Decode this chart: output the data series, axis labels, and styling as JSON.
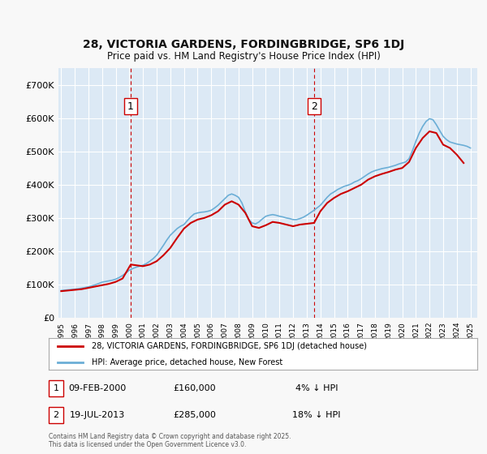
{
  "title_line1": "28, VICTORIA GARDENS, FORDINGBRIDGE, SP6 1DJ",
  "title_line2": "Price paid vs. HM Land Registry's House Price Index (HPI)",
  "background_color": "#dce9f5",
  "plot_bg_color": "#dce9f5",
  "ylabel_color": "#222222",
  "grid_color": "#ffffff",
  "ylim": [
    0,
    750000
  ],
  "yticks": [
    0,
    100000,
    200000,
    300000,
    400000,
    500000,
    600000,
    700000
  ],
  "ytick_labels": [
    "£0",
    "£100K",
    "£200K",
    "£300K",
    "£400K",
    "£500K",
    "£600K",
    "£700K"
  ],
  "hpi_color": "#6baed6",
  "price_color": "#cc0000",
  "vline_color": "#cc0000",
  "marker1_x": 2000.1,
  "marker2_x": 2013.54,
  "marker1_label": "1",
  "marker2_label": "2",
  "legend_line1": "28, VICTORIA GARDENS, FORDINGBRIDGE, SP6 1DJ (detached house)",
  "legend_line2": "HPI: Average price, detached house, New Forest",
  "annotation1": "1     09-FEB-2000          £160,000          4% ↓ HPI",
  "annotation2": "2     19-JUL-2013            £285,000         18% ↓ HPI",
  "footer": "Contains HM Land Registry data © Crown copyright and database right 2025.\nThis data is licensed under the Open Government Licence v3.0.",
  "hpi_data_x": [
    1995,
    1995.25,
    1995.5,
    1995.75,
    1996,
    1996.25,
    1996.5,
    1996.75,
    1997,
    1997.25,
    1997.5,
    1997.75,
    1998,
    1998.25,
    1998.5,
    1998.75,
    1999,
    1999.25,
    1999.5,
    1999.75,
    2000,
    2000.25,
    2000.5,
    2000.75,
    2001,
    2001.25,
    2001.5,
    2001.75,
    2002,
    2002.25,
    2002.5,
    2002.75,
    2003,
    2003.25,
    2003.5,
    2003.75,
    2004,
    2004.25,
    2004.5,
    2004.75,
    2005,
    2005.25,
    2005.5,
    2005.75,
    2006,
    2006.25,
    2006.5,
    2006.75,
    2007,
    2007.25,
    2007.5,
    2007.75,
    2008,
    2008.25,
    2008.5,
    2008.75,
    2009,
    2009.25,
    2009.5,
    2009.75,
    2010,
    2010.25,
    2010.5,
    2010.75,
    2011,
    2011.25,
    2011.5,
    2011.75,
    2012,
    2012.25,
    2012.5,
    2012.75,
    2013,
    2013.25,
    2013.5,
    2013.75,
    2014,
    2014.25,
    2014.5,
    2014.75,
    2015,
    2015.25,
    2015.5,
    2015.75,
    2016,
    2016.25,
    2016.5,
    2016.75,
    2017,
    2017.25,
    2017.5,
    2017.75,
    2018,
    2018.25,
    2018.5,
    2018.75,
    2019,
    2019.25,
    2019.5,
    2019.75,
    2020,
    2020.25,
    2020.5,
    2020.75,
    2021,
    2021.25,
    2021.5,
    2021.75,
    2022,
    2022.25,
    2022.5,
    2022.75,
    2023,
    2023.25,
    2023.5,
    2023.75,
    2024,
    2024.25,
    2024.5,
    2024.75,
    2025
  ],
  "hpi_data_y": [
    82000,
    83000,
    84000,
    85000,
    86000,
    87500,
    89000,
    91000,
    93000,
    96000,
    99000,
    103000,
    107000,
    109000,
    111000,
    113000,
    116000,
    121000,
    127000,
    135000,
    143000,
    148000,
    152000,
    155000,
    158000,
    163000,
    170000,
    178000,
    188000,
    203000,
    218000,
    234000,
    248000,
    258000,
    268000,
    275000,
    280000,
    292000,
    303000,
    312000,
    315000,
    317000,
    318000,
    320000,
    323000,
    330000,
    338000,
    348000,
    358000,
    368000,
    372000,
    368000,
    362000,
    345000,
    318000,
    295000,
    285000,
    282000,
    288000,
    297000,
    305000,
    308000,
    310000,
    308000,
    305000,
    303000,
    300000,
    298000,
    295000,
    295000,
    298000,
    302000,
    308000,
    315000,
    322000,
    330000,
    338000,
    350000,
    362000,
    372000,
    378000,
    385000,
    390000,
    395000,
    398000,
    402000,
    408000,
    412000,
    418000,
    425000,
    432000,
    438000,
    442000,
    445000,
    448000,
    450000,
    452000,
    455000,
    458000,
    462000,
    465000,
    468000,
    478000,
    502000,
    530000,
    555000,
    575000,
    590000,
    598000,
    595000,
    580000,
    562000,
    545000,
    535000,
    528000,
    525000,
    522000,
    520000,
    518000,
    515000,
    510000
  ],
  "price_data_x": [
    1995,
    1995.5,
    1996,
    1996.5,
    1997,
    1997.5,
    1998,
    1998.5,
    1999,
    1999.5,
    2000.1,
    2001,
    2001.5,
    2002,
    2002.5,
    2003,
    2003.5,
    2004,
    2004.5,
    2005,
    2005.5,
    2006,
    2006.5,
    2007,
    2007.5,
    2008,
    2008.5,
    2009,
    2009.5,
    2010,
    2010.5,
    2011,
    2011.5,
    2012,
    2012.5,
    2013.54,
    2014,
    2014.5,
    2015,
    2015.5,
    2016,
    2016.5,
    2017,
    2017.5,
    2018,
    2018.5,
    2019,
    2019.5,
    2020,
    2020.5,
    2021,
    2021.5,
    2022,
    2022.5,
    2023,
    2023.5,
    2024,
    2024.5
  ],
  "price_data_y": [
    80000,
    82000,
    84000,
    86000,
    90000,
    94000,
    98000,
    102000,
    108000,
    118000,
    160000,
    155000,
    160000,
    170000,
    188000,
    210000,
    240000,
    268000,
    285000,
    295000,
    300000,
    308000,
    320000,
    340000,
    350000,
    340000,
    315000,
    275000,
    270000,
    278000,
    288000,
    285000,
    280000,
    275000,
    280000,
    285000,
    320000,
    345000,
    360000,
    372000,
    380000,
    390000,
    400000,
    415000,
    425000,
    432000,
    438000,
    445000,
    450000,
    468000,
    510000,
    540000,
    560000,
    555000,
    520000,
    510000,
    490000,
    465000
  ]
}
